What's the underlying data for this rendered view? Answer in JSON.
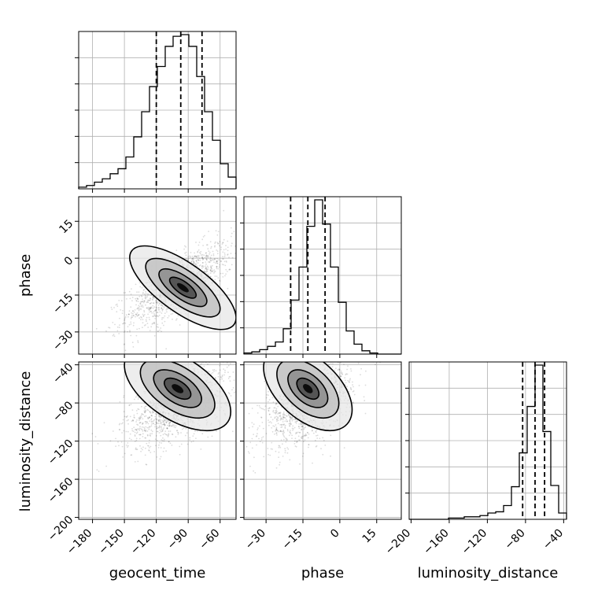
{
  "chart_data": {
    "type": "corner",
    "title": "",
    "parameters": [
      "geocent_time",
      "phase",
      "luminosity_distance"
    ],
    "axis_labels": {
      "x": [
        "geocent_time",
        "phase",
        "luminosity_distance"
      ],
      "y": [
        "phase",
        "luminosity_distance"
      ]
    },
    "ranges": {
      "geocent_time": [
        -193,
        -45
      ],
      "phase": [
        -39,
        25
      ],
      "luminosity_distance": [
        -202,
        -37
      ]
    },
    "ticks": {
      "geocent_time": [
        -180,
        -150,
        -120,
        -90,
        -60
      ],
      "phase": [
        -30,
        -15,
        0,
        15
      ],
      "luminosity_distance": [
        -200,
        -160,
        -120,
        -80,
        -40
      ]
    },
    "tick_labels": {
      "geocent_time": [
        "−180",
        "−150",
        "−120",
        "−90",
        "−60"
      ],
      "phase": [
        "−30",
        "−15",
        "0",
        "15"
      ],
      "luminosity_distance": [
        "−200",
        "−160",
        "−120",
        "−80",
        "−40"
      ]
    },
    "grid": true,
    "quantiles": {
      "geocent_time": [
        -120,
        -97,
        -77
      ],
      "phase": [
        -20,
        -13,
        -6
      ],
      "luminosity_distance": [
        -83,
        -70,
        -60
      ]
    },
    "histograms": {
      "geocent_time": {
        "bin_start": -193,
        "bin_width": 7.4,
        "counts": [
          1,
          2,
          4,
          6,
          9,
          12,
          19,
          31,
          46,
          61,
          73,
          85,
          91,
          92,
          85,
          67,
          46,
          29,
          15,
          7
        ]
      },
      "phase": {
        "bin_start": -39,
        "bin_width": 3.2,
        "counts": [
          1,
          2,
          4,
          7,
          11,
          23,
          49,
          79,
          116,
          140,
          118,
          79,
          47,
          21,
          9,
          3,
          1,
          0,
          0,
          0
        ]
      },
      "luminosity_distance": {
        "bin_start": -202,
        "bin_width": 8.25,
        "counts": [
          0,
          0,
          0,
          0,
          0,
          1,
          1,
          2,
          2,
          3,
          5,
          6,
          11,
          26,
          53,
          90,
          123,
          70,
          27,
          5
        ]
      }
    },
    "scatter_2d": [
      {
        "x": "geocent_time",
        "y": "phase",
        "mean": [
          -98,
          -11
        ],
        "std": [
          25,
          8.5
        ],
        "correlation": 0.72,
        "density_peak": [
          -95,
          -12
        ]
      },
      {
        "x": "geocent_time",
        "y": "luminosity_distance",
        "mean": [
          -100,
          -82
        ],
        "std": [
          25,
          22
        ],
        "correlation": 0.55,
        "density_peak": [
          -100,
          -65
        ]
      },
      {
        "x": "phase",
        "y": "luminosity_distance",
        "mean": [
          -13,
          -80
        ],
        "std": [
          9,
          22
        ],
        "correlation": 0.5,
        "density_peak": [
          -13,
          -65
        ]
      }
    ]
  }
}
